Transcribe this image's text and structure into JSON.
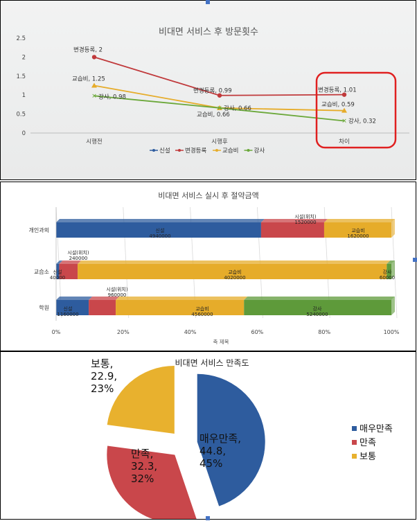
{
  "charts": [
    {
      "chart_data": {
        "type": "line",
        "title": "비대면 서비스 후 방문횟수",
        "categories": [
          "시행전",
          "시행후",
          "차이"
        ],
        "ylim": [
          0,
          2.5
        ],
        "yticks": [
          "0",
          "0.5",
          "1",
          "1.5",
          "2",
          "2.5"
        ],
        "series": [
          {
            "name": "신설",
            "color": "#2e5c9e",
            "values": [
              null,
              null,
              null
            ],
            "labels": [
              "",
              "",
              ""
            ]
          },
          {
            "name": "변경등록",
            "color": "#c0393b",
            "values": [
              2,
              0.99,
              1.01
            ],
            "labels": [
              "변경등록, 2",
              "변경등록, 0.99",
              "변경등록, 1.01"
            ]
          },
          {
            "name": "교습비",
            "color": "#e6ac2a",
            "values": [
              1.25,
              0.66,
              0.59
            ],
            "labels": [
              "교습비, 1.25",
              "교습비, 0.66",
              "교습비, 0.59"
            ]
          },
          {
            "name": "강사",
            "color": "#6ba83a",
            "values": [
              0.98,
              0.66,
              0.32
            ],
            "labels": [
              "강사, 0.98",
              "강사, 0.66",
              "강사, 0.32"
            ]
          }
        ],
        "legend": "bottom",
        "highlight": {
          "category": "차이",
          "color": "#e02020"
        },
        "grid": false
      }
    },
    {
      "chart_data": {
        "type": "bar",
        "orientation": "horizontal",
        "stacked_percent": true,
        "title": "비대면 서비스 실시 후 절약금액",
        "categories": [
          "개인과외",
          "교습소",
          "학원"
        ],
        "xlabel": "축 제목",
        "xticks": [
          "0%",
          "20%",
          "40%",
          "60%",
          "80%",
          "100%"
        ],
        "series": [
          {
            "name": "신설",
            "color": "#2e5c9e",
            "values": [
              4940000,
              40000,
              1160000
            ]
          },
          {
            "name": "시설(위치)",
            "color": "#c9474b",
            "values": [
              1520000,
              240000,
              960000
            ]
          },
          {
            "name": "교습비",
            "color": "#e6ac2a",
            "values": [
              1620000,
              4020000,
              4560000
            ]
          },
          {
            "name": "강사",
            "color": "#5e9a3a",
            "values": [
              0,
              60000,
              5240000
            ]
          }
        ],
        "segment_labels": [
          [
            [
              "신설",
              "4940000"
            ],
            [
              "시설(위치)",
              "1520000"
            ],
            [
              "교습비",
              "1620000"
            ],
            [
              "",
              ""
            ]
          ],
          [
            [
              "신설",
              "40000"
            ],
            [
              "시설(위치)",
              "240000"
            ],
            [
              "교습비",
              "4020000"
            ],
            [
              "강사",
              "60000"
            ]
          ],
          [
            [
              "신설",
              "1160000"
            ],
            [
              "시설(위치)",
              "960000"
            ],
            [
              "교습비",
              "4560000"
            ],
            [
              "강사",
              "5240000"
            ]
          ]
        ],
        "grid": true
      }
    },
    {
      "chart_data": {
        "type": "pie",
        "exploded": true,
        "title": "비대면 서비스 만족도",
        "slices": [
          {
            "name": "매우만족",
            "value": 44.8,
            "percent": "45%",
            "color": "#2e5c9e",
            "label": [
              "매우만족,",
              "44.8,",
              "45%"
            ]
          },
          {
            "name": "만족",
            "value": 32.3,
            "percent": "32%",
            "color": "#c9474b",
            "label": [
              "만족,",
              "32.3,",
              "32%"
            ]
          },
          {
            "name": "보통",
            "value": 22.9,
            "percent": "23%",
            "color": "#e8b12e",
            "label": [
              "보통,",
              "22.9,",
              "23%"
            ]
          }
        ],
        "legend": "right"
      }
    }
  ]
}
